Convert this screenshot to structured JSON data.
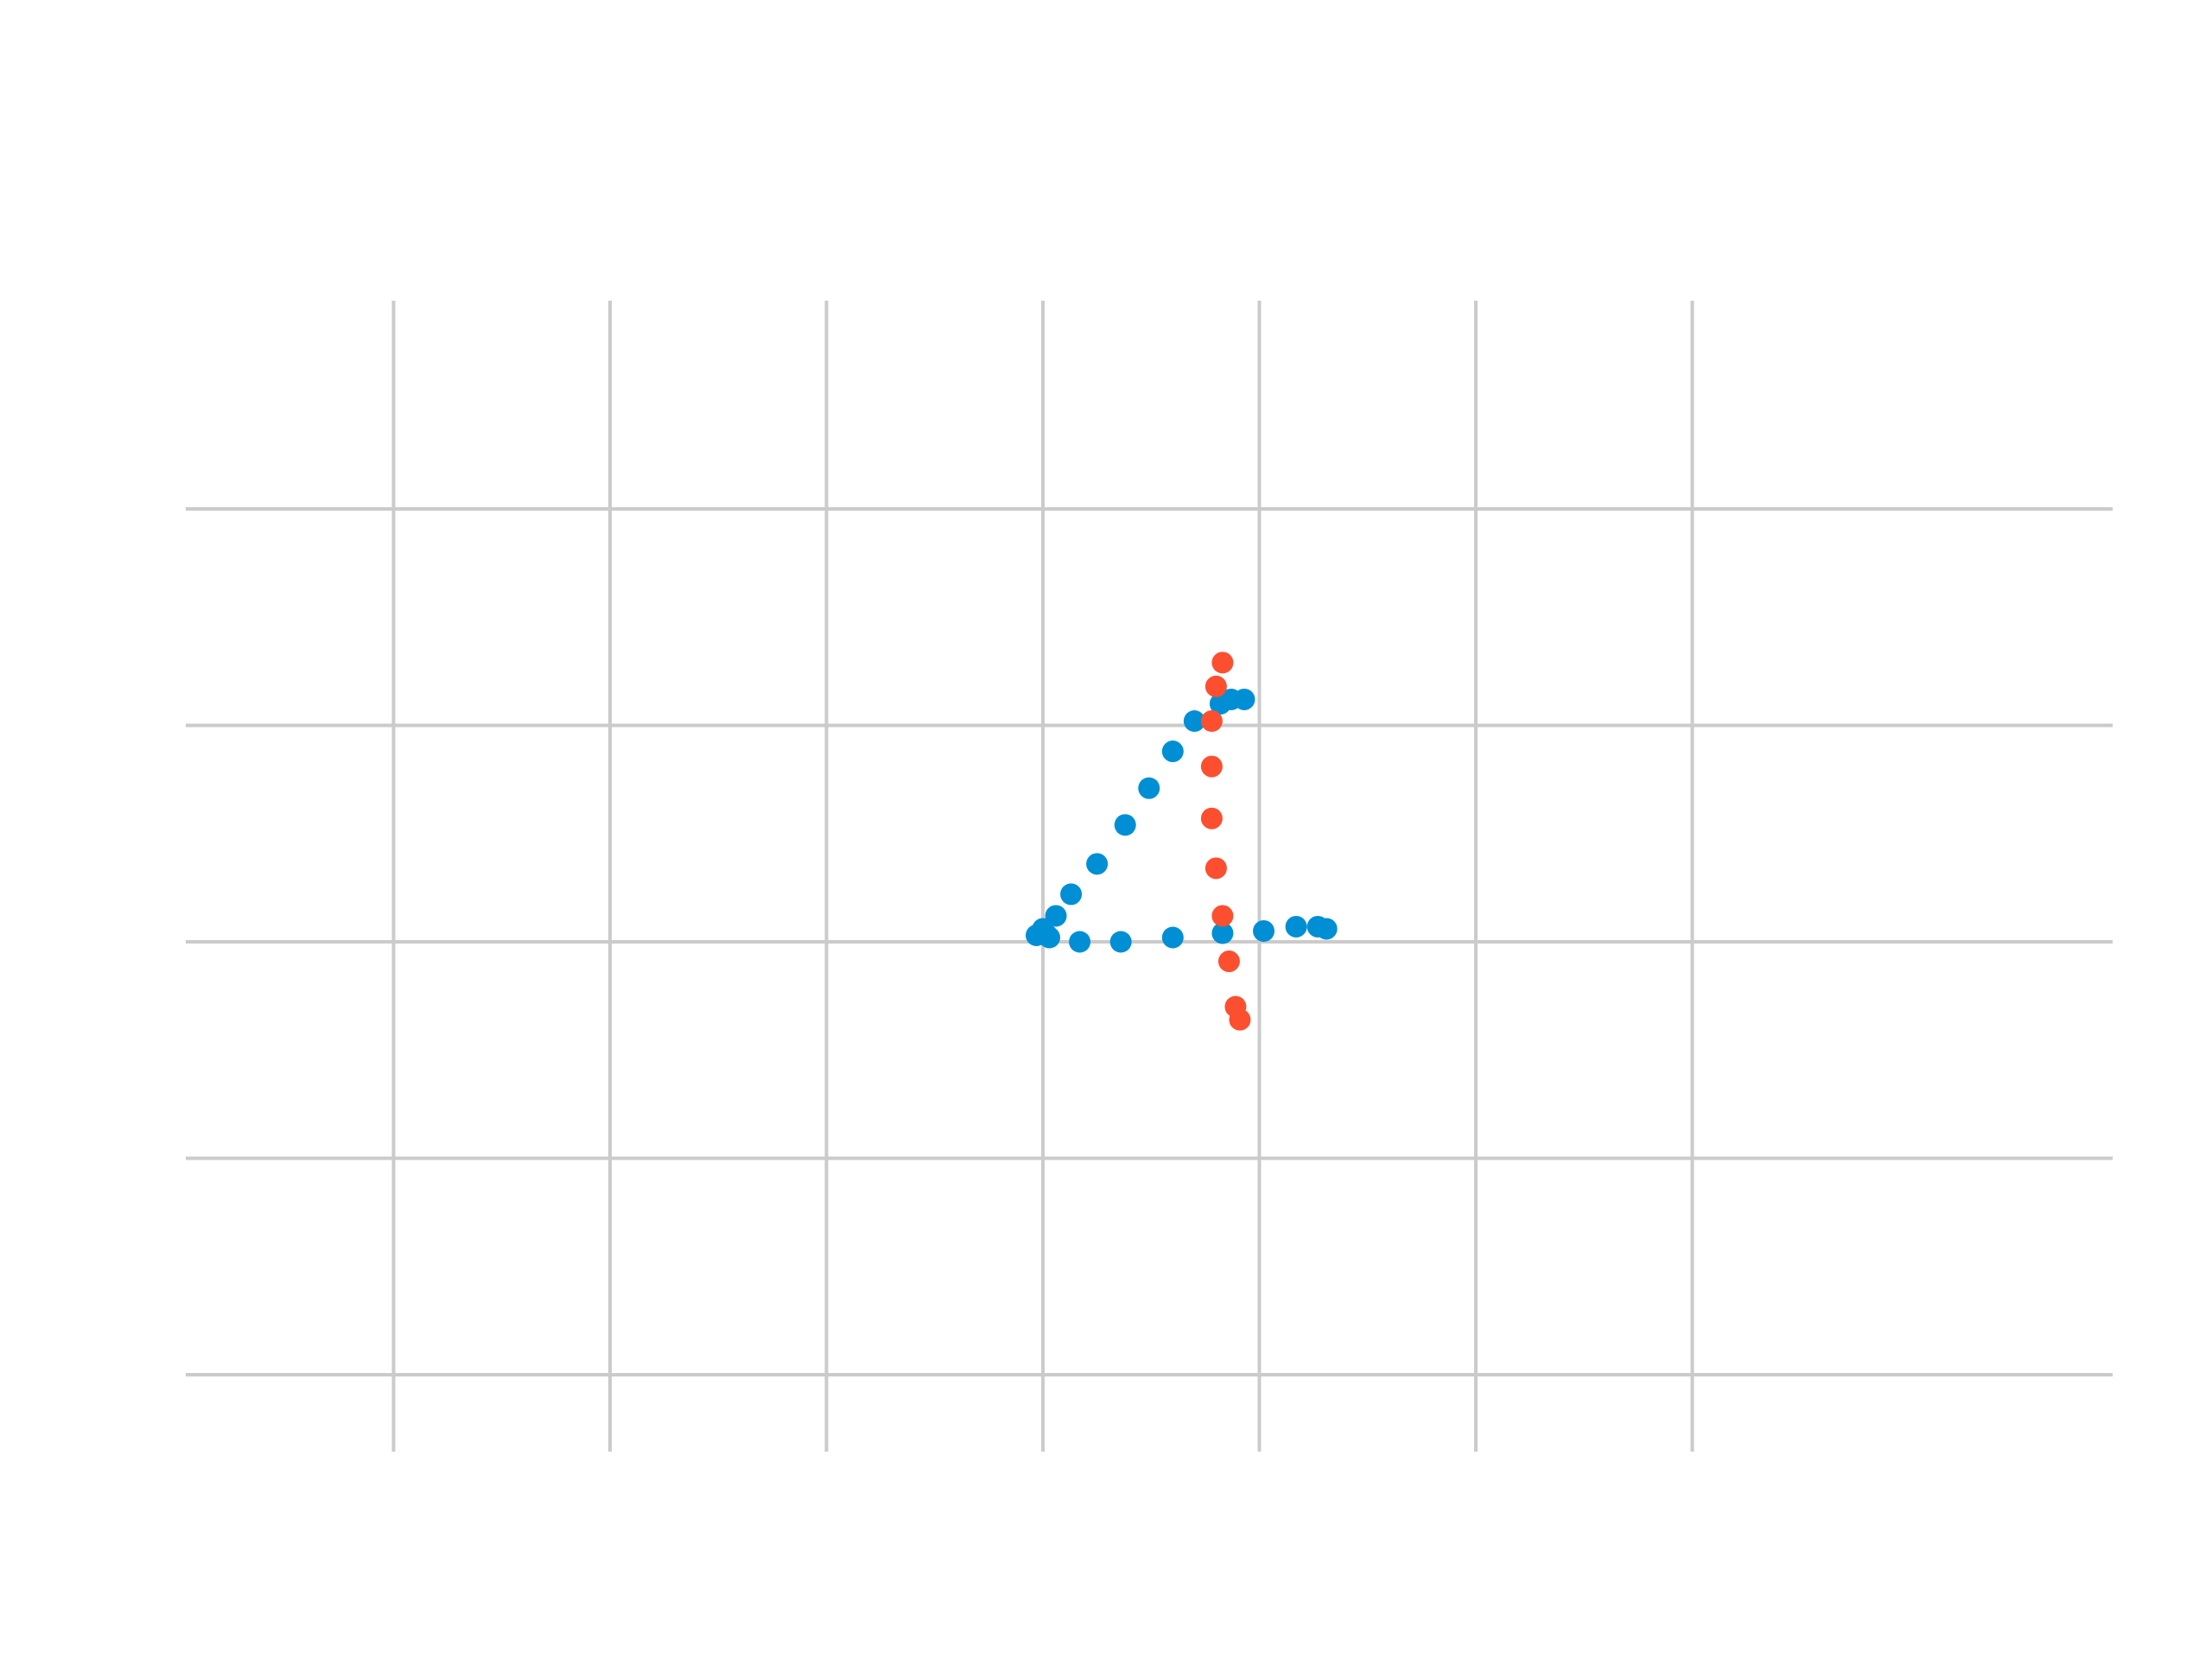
{
  "chart_data": {
    "type": "scatter",
    "title": "",
    "xlabel": "",
    "ylabel": "",
    "xlim": [
      -4.8,
      4.1
    ],
    "ylim": [
      -2.4,
      2.9
    ],
    "xgrid": [
      -3,
      -2,
      -1,
      0,
      1,
      2,
      3
    ],
    "ygrid": [
      -2,
      -1,
      0,
      1,
      2
    ],
    "grid": true,
    "legend": "none",
    "series": [
      {
        "color": "#008fd5",
        "points": [
          [
            -0.03,
            0.03
          ],
          [
            0.0,
            0.06
          ],
          [
            0.03,
            0.02
          ],
          [
            0.06,
            0.12
          ],
          [
            0.13,
            0.22
          ],
          [
            0.25,
            0.36
          ],
          [
            0.38,
            0.54
          ],
          [
            0.49,
            0.71
          ],
          [
            0.6,
            0.88
          ],
          [
            0.7,
            1.02
          ],
          [
            0.82,
            1.1
          ],
          [
            0.87,
            1.12
          ],
          [
            0.93,
            1.12
          ],
          [
            0.17,
            0.0
          ],
          [
            0.36,
            0.0
          ],
          [
            0.6,
            0.02
          ],
          [
            0.83,
            0.04
          ],
          [
            1.02,
            0.05
          ],
          [
            1.17,
            0.07
          ],
          [
            1.27,
            0.07
          ],
          [
            1.31,
            0.06
          ],
          [
            0.02,
            0.03
          ]
        ]
      },
      {
        "color": "#fc4f30",
        "points": [
          [
            0.83,
            1.29
          ],
          [
            0.8,
            1.18
          ],
          [
            0.78,
            1.02
          ],
          [
            0.78,
            0.81
          ],
          [
            0.78,
            0.57
          ],
          [
            0.8,
            0.34
          ],
          [
            0.83,
            0.12
          ],
          [
            0.86,
            -0.09
          ],
          [
            0.89,
            -0.3
          ],
          [
            0.91,
            -0.36
          ]
        ]
      }
    ]
  }
}
